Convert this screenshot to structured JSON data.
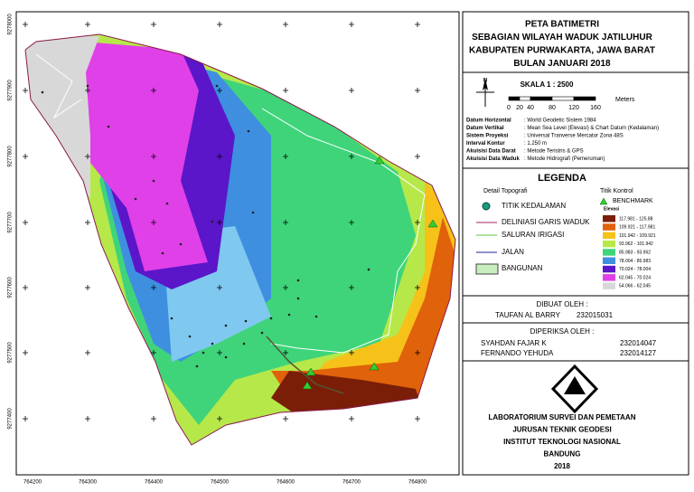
{
  "title": [
    "PETA BATIMETRI",
    "SEBAGIAN WILAYAH WADUK JATILUHUR",
    "KABUPATEN PURWAKARTA, JAWA BARAT",
    "BULAN JANUARI 2018"
  ],
  "scale": {
    "label": "SKALA 1 : 2500",
    "north": "N",
    "unit": "Meters",
    "ticks": [
      "0",
      "20",
      "40",
      "80",
      "120",
      "160"
    ]
  },
  "metadata": [
    [
      "Datum Horizontal",
      ": World Geodetic Sistem 1984"
    ],
    [
      "Datum Vertikal",
      ": Mean Sea Level (Elevasi) & Chart Datum (Kedalaman)"
    ],
    [
      "Sistem Proyeksi",
      ": Universal Tranverse Mercator Zona 48S"
    ],
    [
      "Interval Kontur",
      ": 1.250 m"
    ],
    [
      "Akuisisi Data Darat",
      ": Metode Teristris & GPS"
    ],
    [
      "Akuisisi Data Waduk",
      ": Metode Hidrografi (Pemeruman)"
    ]
  ],
  "legend": {
    "title": "LEGENDA",
    "topo_title": "Detail Topografi",
    "topo_items": [
      "TITIK KEDALAMAN",
      "DELINIASI GARIS WADUK",
      "SALURAN IRIGASI",
      "JALAN",
      "BANGUNAN"
    ],
    "control_title": "Titik Kontrol",
    "benchmark": "BENCHMARK",
    "elevation_title": "Elevasi",
    "elevation_classes": [
      {
        "label": "117.981 - 125.88",
        "color": "#7a1e08"
      },
      {
        "label": "109.921 - 117.981",
        "color": "#e0620a"
      },
      {
        "label": "101.942 - 109.921",
        "color": "#f6c21a"
      },
      {
        "label": "93.962 - 101.942",
        "color": "#b6e84a"
      },
      {
        "label": "85.983 - 93.962",
        "color": "#3fd47a"
      },
      {
        "label": "78.004 - 85.983",
        "color": "#3f8fe0"
      },
      {
        "label": "70.024 - 78.004",
        "color": "#5a16c8"
      },
      {
        "label": "62.045 - 70.024",
        "color": "#e040e8"
      },
      {
        "label": "54.066 - 62.045",
        "color": "#d8d8d8"
      }
    ]
  },
  "made_by": {
    "title": "DIBUAT OLEH :",
    "name": "TAUFAN AL BARRY",
    "id": "232015031"
  },
  "checked_by": {
    "title": "DIPERIKSA OLEH :",
    "people": [
      {
        "name": "SYAHDAN FAJAR K",
        "id": "232014047"
      },
      {
        "name": "FERNANDO YEHUDA",
        "id": "232014127"
      }
    ]
  },
  "institution": [
    "LABORATORIUM SURVEI DAN PEMETAAN",
    "JURUSAN TEKNIK GEODESI",
    "INSTITUT TEKNOLOGI NASIONAL",
    "BANDUNG",
    "2018"
  ],
  "map": {
    "x_labels": [
      "764200",
      "764300",
      "764400",
      "764500",
      "764600",
      "764700",
      "764800"
    ],
    "y_labels": [
      "9278000",
      "9277900",
      "9277800",
      "9277700",
      "9277600",
      "9277500",
      "9277400"
    ]
  }
}
